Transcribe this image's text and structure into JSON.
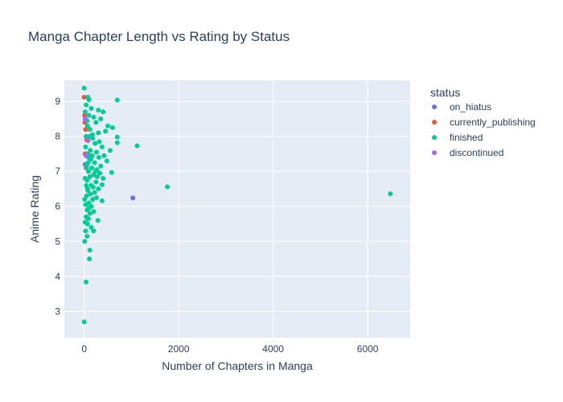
{
  "colors": {
    "plot_bg": "#e5ecf6",
    "grid": "#ffffff",
    "text": "#2a3f5f"
  },
  "chart_data": {
    "type": "scatter",
    "title": "Manga Chapter Length vs Rating by Status",
    "xlabel": "Number of Chapters in Manga",
    "ylabel": "Anime Rating",
    "xlim": [
      -420,
      6900
    ],
    "ylim": [
      2.25,
      9.6
    ],
    "x_ticks": [
      0,
      2000,
      4000,
      6000
    ],
    "x_tick_labels": [
      "0",
      "2000",
      "4000",
      "6000"
    ],
    "y_ticks": [
      3,
      4,
      5,
      6,
      7,
      8,
      9
    ],
    "y_tick_labels": [
      "3",
      "4",
      "5",
      "6",
      "7",
      "8",
      "9"
    ],
    "grid": true,
    "legend_title": "status",
    "legend_position": "right",
    "series": [
      {
        "name": "on_hiatus",
        "color": "#636efa",
        "points": [
          [
            1030,
            6.24
          ],
          [
            20,
            7.2
          ],
          [
            60,
            7.5
          ]
        ]
      },
      {
        "name": "currently_publishing",
        "color": "#ef553b",
        "points": [
          [
            0,
            9.12
          ],
          [
            10,
            8.6
          ],
          [
            30,
            8.2
          ],
          [
            50,
            7.9
          ],
          [
            20,
            7.5
          ],
          [
            40,
            7.1
          ],
          [
            15,
            8.4
          ]
        ]
      },
      {
        "name": "finished",
        "color": "#00cc96",
        "points": [
          [
            0,
            9.38
          ],
          [
            80,
            9.12
          ],
          [
            100,
            9.05
          ],
          [
            700,
            9.04
          ],
          [
            40,
            8.9
          ],
          [
            150,
            8.8
          ],
          [
            300,
            8.75
          ],
          [
            400,
            8.7
          ],
          [
            100,
            8.6
          ],
          [
            200,
            8.55
          ],
          [
            350,
            8.5
          ],
          [
            60,
            8.45
          ],
          [
            250,
            8.4
          ],
          [
            500,
            8.3
          ],
          [
            600,
            8.25
          ],
          [
            120,
            8.2
          ],
          [
            450,
            8.15
          ],
          [
            300,
            8.1
          ],
          [
            700,
            7.98
          ],
          [
            40,
            8.0
          ],
          [
            180,
            7.95
          ],
          [
            700,
            7.82
          ],
          [
            1120,
            7.73
          ],
          [
            380,
            7.7
          ],
          [
            550,
            7.6
          ],
          [
            260,
            7.55
          ],
          [
            80,
            7.5
          ],
          [
            420,
            7.45
          ],
          [
            310,
            7.4
          ],
          [
            140,
            7.35
          ],
          [
            480,
            7.3
          ],
          [
            220,
            7.25
          ],
          [
            60,
            7.2
          ],
          [
            350,
            7.15
          ],
          [
            160,
            7.1
          ],
          [
            270,
            7.05
          ],
          [
            90,
            7.0
          ],
          [
            580,
            6.97
          ],
          [
            330,
            6.95
          ],
          [
            200,
            6.9
          ],
          [
            120,
            6.85
          ],
          [
            400,
            6.8
          ],
          [
            60,
            6.75
          ],
          [
            250,
            6.7
          ],
          [
            380,
            6.62
          ],
          [
            150,
            6.6
          ],
          [
            1760,
            6.56
          ],
          [
            300,
            6.5
          ],
          [
            80,
            6.45
          ],
          [
            220,
            6.4
          ],
          [
            130,
            6.35
          ],
          [
            50,
            6.3
          ],
          [
            260,
            6.25
          ],
          [
            180,
            6.2
          ],
          [
            380,
            6.16
          ],
          [
            100,
            6.1
          ],
          [
            30,
            6.05
          ],
          [
            150,
            6.0
          ],
          [
            60,
            5.9
          ],
          [
            200,
            5.85
          ],
          [
            120,
            5.8
          ],
          [
            40,
            5.7
          ],
          [
            90,
            5.65
          ],
          [
            290,
            5.6
          ],
          [
            20,
            5.55
          ],
          [
            70,
            5.5
          ],
          [
            150,
            5.4
          ],
          [
            30,
            5.3
          ],
          [
            200,
            5.3
          ],
          [
            60,
            5.15
          ],
          [
            10,
            5.0
          ],
          [
            120,
            4.75
          ],
          [
            110,
            4.5
          ],
          [
            40,
            3.84
          ],
          [
            0,
            2.7
          ],
          [
            6480,
            6.36
          ],
          [
            20,
            8.7
          ],
          [
            70,
            8.3
          ],
          [
            110,
            8.0
          ],
          [
            30,
            7.7
          ],
          [
            90,
            7.4
          ],
          [
            50,
            7.1
          ],
          [
            20,
            6.8
          ],
          [
            70,
            6.5
          ],
          [
            10,
            6.2
          ],
          [
            100,
            5.95
          ],
          [
            45,
            6.6
          ],
          [
            85,
            7.25
          ],
          [
            130,
            7.6
          ],
          [
            175,
            8.05
          ],
          [
            230,
            7.8
          ],
          [
            320,
            7.85
          ],
          [
            190,
            6.55
          ],
          [
            240,
            7.0
          ],
          [
            170,
            7.45
          ],
          [
            275,
            6.85
          ]
        ]
      },
      {
        "name": "discontinued",
        "color": "#ab63fa",
        "points": [
          [
            80,
            7.88
          ],
          [
            40,
            7.45
          ],
          [
            20,
            8.5
          ]
        ]
      }
    ]
  }
}
